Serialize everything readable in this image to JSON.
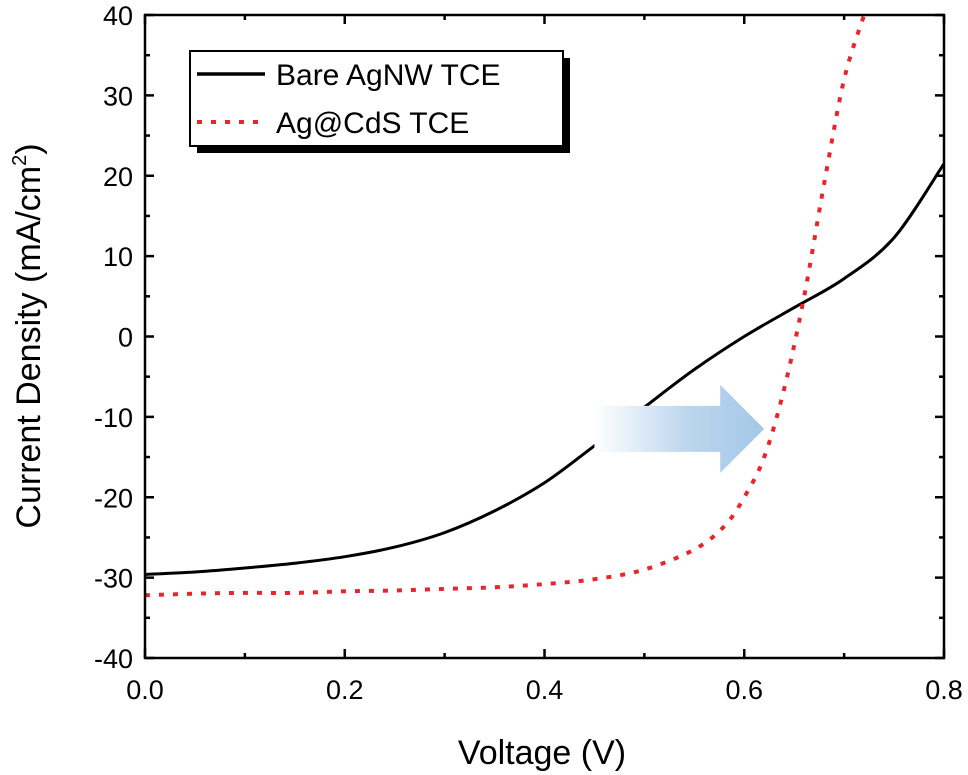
{
  "chart_data": {
    "type": "line",
    "title": "",
    "xlabel": "Voltage (V)",
    "ylabel": "Current Density (mA/cm",
    "ylabel_superscript": "2",
    "ylabel_suffix": ")",
    "xlim": [
      0.0,
      0.8
    ],
    "ylim": [
      -40,
      40
    ],
    "x_ticks": [
      0.0,
      0.2,
      0.4,
      0.6,
      0.8
    ],
    "x_tick_labels": [
      "0.0",
      "0.2",
      "0.4",
      "0.6",
      "0.8"
    ],
    "y_ticks": [
      -40,
      -30,
      -20,
      -10,
      0,
      10,
      20,
      30,
      40
    ],
    "y_tick_labels": [
      "-40",
      "-30",
      "-20",
      "-10",
      "0",
      "10",
      "20",
      "30",
      "40"
    ],
    "grid": false,
    "legend_position": "top-left",
    "series": [
      {
        "name": "Bare AgNW TCE",
        "style": "solid",
        "color": "#000000",
        "x": [
          0.0,
          0.05,
          0.1,
          0.15,
          0.2,
          0.25,
          0.3,
          0.35,
          0.4,
          0.45,
          0.5,
          0.55,
          0.6,
          0.65,
          0.7,
          0.75,
          0.8
        ],
        "y": [
          -29.6,
          -29.3,
          -28.8,
          -28.2,
          -27.4,
          -26.2,
          -24.4,
          -21.7,
          -18.2,
          -13.6,
          -8.8,
          -4.1,
          0.0,
          3.6,
          7.2,
          12.3,
          21.5
        ]
      },
      {
        "name": "Ag@CdS TCE",
        "style": "dotted",
        "color": "#e8262a",
        "x": [
          0.0,
          0.05,
          0.1,
          0.15,
          0.2,
          0.25,
          0.3,
          0.35,
          0.4,
          0.45,
          0.5,
          0.55,
          0.58,
          0.6,
          0.62,
          0.64,
          0.66,
          0.68,
          0.7,
          0.72
        ],
        "y": [
          -32.2,
          -32.0,
          -31.9,
          -31.9,
          -31.7,
          -31.6,
          -31.4,
          -31.2,
          -30.8,
          -30.2,
          -29.0,
          -26.5,
          -23.6,
          -20.0,
          -15.0,
          -6.5,
          5.0,
          19.0,
          32.0,
          40.0
        ]
      }
    ],
    "annotation": {
      "type": "arrow",
      "description": "shift toward higher voltage",
      "from": [
        0.45,
        -11.5
      ],
      "to": [
        0.62,
        -11.5
      ],
      "color": "#a9cbe8"
    }
  }
}
